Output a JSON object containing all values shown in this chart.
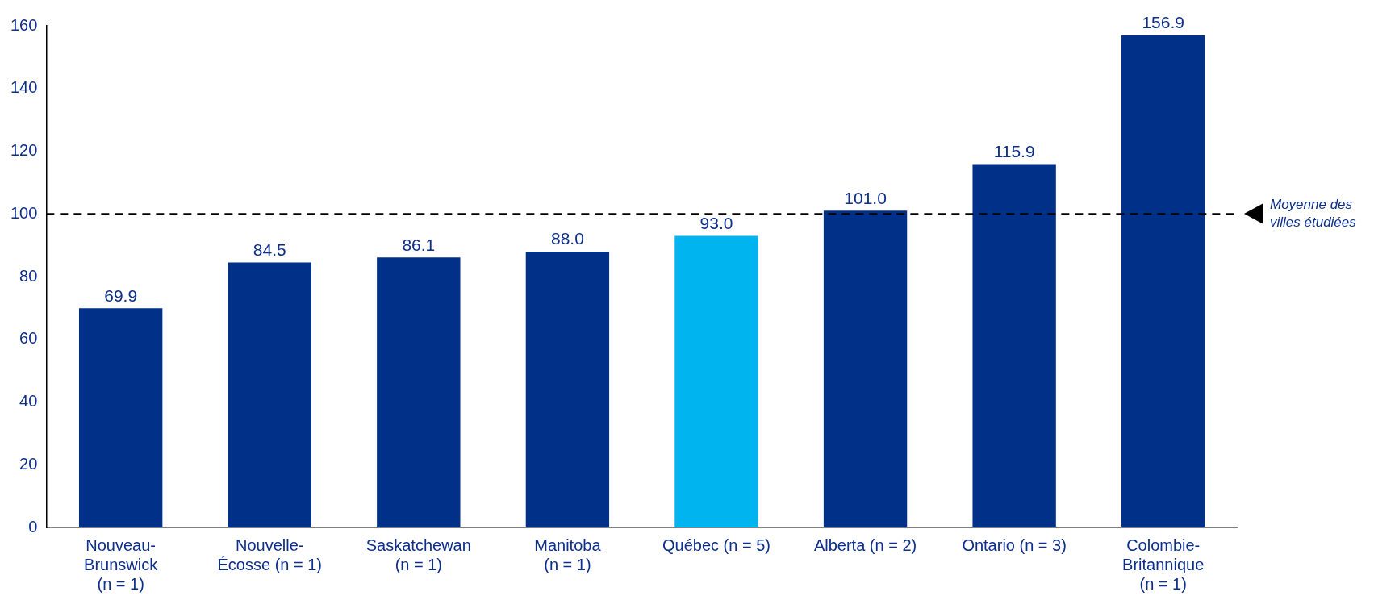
{
  "chart_data": {
    "type": "bar",
    "categories": [
      "Nouveau-\nBrunswick\n(n = 1)",
      "Nouvelle-\nÉcosse (n = 1)",
      "Saskatchewan\n(n = 1)",
      "Manitoba\n(n = 1)",
      "Québec (n = 5)",
      "Alberta (n = 2)",
      "Ontario (n = 3)",
      "Colombie-\nBritannique\n(n = 1)"
    ],
    "values": [
      69.9,
      84.5,
      86.1,
      88.0,
      93.0,
      101.0,
      115.9,
      156.9
    ],
    "colors": [
      "#003087",
      "#003087",
      "#003087",
      "#003087",
      "#00b5ef",
      "#003087",
      "#003087",
      "#003087"
    ],
    "value_labels": [
      "69.9",
      "84.5",
      "86.1",
      "88.0",
      "93.0",
      "101.0",
      "115.9",
      "156.9"
    ],
    "ylim": [
      0,
      160
    ],
    "yticks": [
      0,
      20,
      40,
      60,
      80,
      100,
      120,
      140,
      160
    ],
    "grid": false,
    "legend": false,
    "ref_lines": [
      {
        "axis": "y",
        "value": 100,
        "label": "Moyenne des\nvilles étudiées",
        "color": "#000000",
        "line_style": "dashed"
      }
    ]
  }
}
